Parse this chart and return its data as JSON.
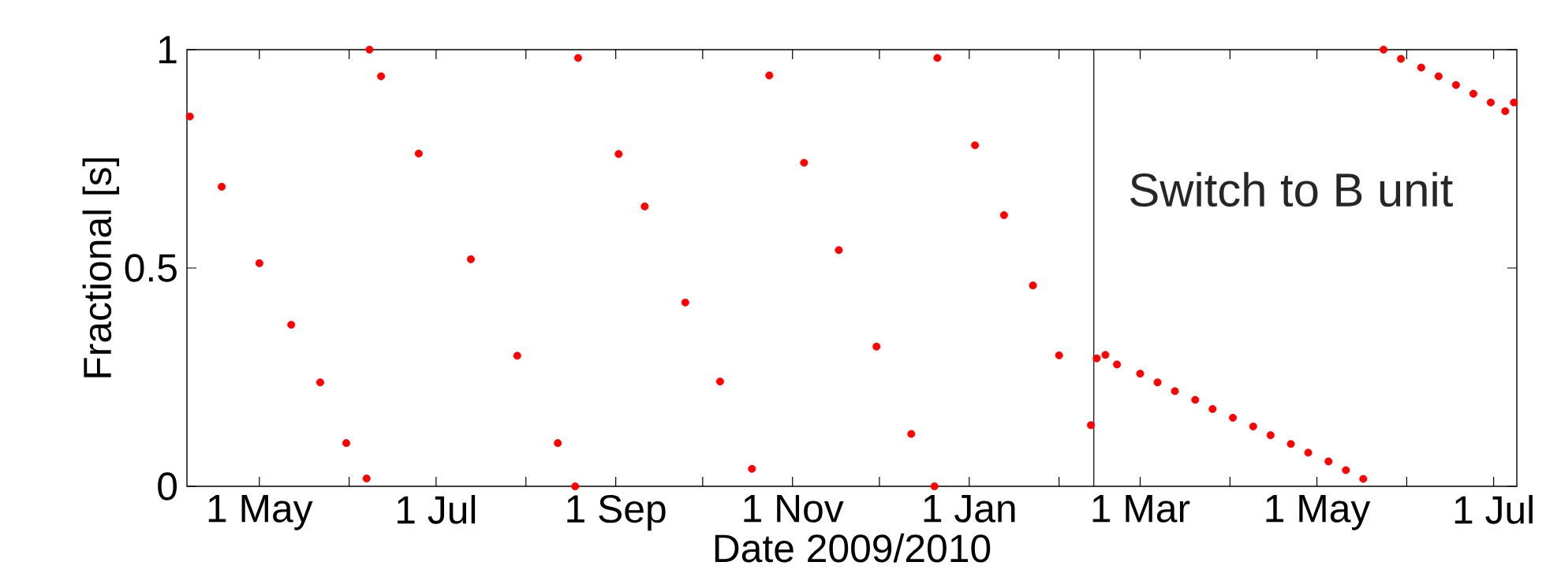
{
  "chart_data": {
    "type": "scatter",
    "xlabel": "Date 2009/2010",
    "ylabel": "Fractional [s]",
    "color": "#ff0000",
    "marker": "circle",
    "x": [
      "2009-04-07",
      "2009-04-18",
      "2009-05-01",
      "2009-05-12",
      "2009-05-22",
      "2009-05-31",
      "2009-06-07",
      "2009-06-08",
      "2009-06-12",
      "2009-06-25",
      "2009-07-13",
      "2009-07-29",
      "2009-08-12",
      "2009-08-18",
      "2009-08-19",
      "2009-09-02",
      "2009-09-11",
      "2009-09-25",
      "2009-10-07",
      "2009-10-18",
      "2009-10-24",
      "2009-11-05",
      "2009-11-17",
      "2009-11-30",
      "2009-12-12",
      "2009-12-20",
      "2009-12-21",
      "2010-01-03",
      "2010-01-13",
      "2010-01-23",
      "2010-02-01",
      "2010-02-12",
      "2010-02-14",
      "2010-02-17",
      "2010-02-21",
      "2010-03-01",
      "2010-03-07",
      "2010-03-13",
      "2010-03-20",
      "2010-03-26",
      "2010-04-02",
      "2010-04-09",
      "2010-04-15",
      "2010-04-22",
      "2010-04-28",
      "2010-05-05",
      "2010-05-11",
      "2010-05-17",
      "2010-05-24",
      "2010-05-30",
      "2010-06-06",
      "2010-06-12",
      "2010-06-18",
      "2010-06-24",
      "2010-06-30",
      "2010-07-05",
      "2010-07-08"
    ],
    "values": [
      0.847,
      0.686,
      0.511,
      0.37,
      0.238,
      0.099,
      0.018,
      1.0,
      0.939,
      0.762,
      0.52,
      0.299,
      0.099,
      0.0,
      0.981,
      0.761,
      0.641,
      0.421,
      0.24,
      0.04,
      0.941,
      0.741,
      0.541,
      0.32,
      0.12,
      0.0,
      0.981,
      0.781,
      0.621,
      0.46,
      0.3,
      0.14,
      0.293,
      0.301,
      0.279,
      0.258,
      0.238,
      0.218,
      0.198,
      0.177,
      0.157,
      0.137,
      0.117,
      0.097,
      0.077,
      0.057,
      0.037,
      0.017,
      1.0,
      0.979,
      0.959,
      0.939,
      0.919,
      0.899,
      0.879,
      0.859,
      0.879
    ],
    "xlim": [
      "2009-04-06",
      "2010-07-09"
    ],
    "xticks": [
      {
        "value": "2009-05-01",
        "label": "1 May"
      },
      {
        "value": "2009-06-01",
        "label": null
      },
      {
        "value": "2009-07-01",
        "label": "1 Jul"
      },
      {
        "value": "2009-08-01",
        "label": null
      },
      {
        "value": "2009-09-01",
        "label": "1 Sep"
      },
      {
        "value": "2009-10-01",
        "label": null
      },
      {
        "value": "2009-11-01",
        "label": "1 Nov"
      },
      {
        "value": "2009-12-01",
        "label": null
      },
      {
        "value": "2010-01-01",
        "label": "1 Jan"
      },
      {
        "value": "2010-02-01",
        "label": null
      },
      {
        "value": "2010-03-01",
        "label": "1 Mar"
      },
      {
        "value": "2010-04-01",
        "label": null
      },
      {
        "value": "2010-05-01",
        "label": "1 May"
      },
      {
        "value": "2010-06-01",
        "label": null
      },
      {
        "value": "2010-07-01",
        "label": "1 Jul"
      }
    ],
    "ylim": [
      0,
      1
    ],
    "yticks": [
      0,
      0.5,
      1
    ],
    "ref_lines": [
      {
        "axis": "x",
        "value": "2010-02-13"
      }
    ],
    "annotations": [
      "Switch to B unit"
    ]
  }
}
